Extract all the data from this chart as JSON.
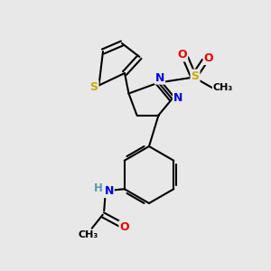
{
  "bg_color": "#e8e8e8",
  "bond_color": "#000000",
  "bond_width": 1.5,
  "atom_colors": {
    "S": "#ccaa00",
    "N": "#0000ee",
    "O": "#ee0000",
    "H": "#5599aa",
    "C": "#000000"
  },
  "figsize": [
    3.0,
    3.0
  ],
  "dpi": 100
}
